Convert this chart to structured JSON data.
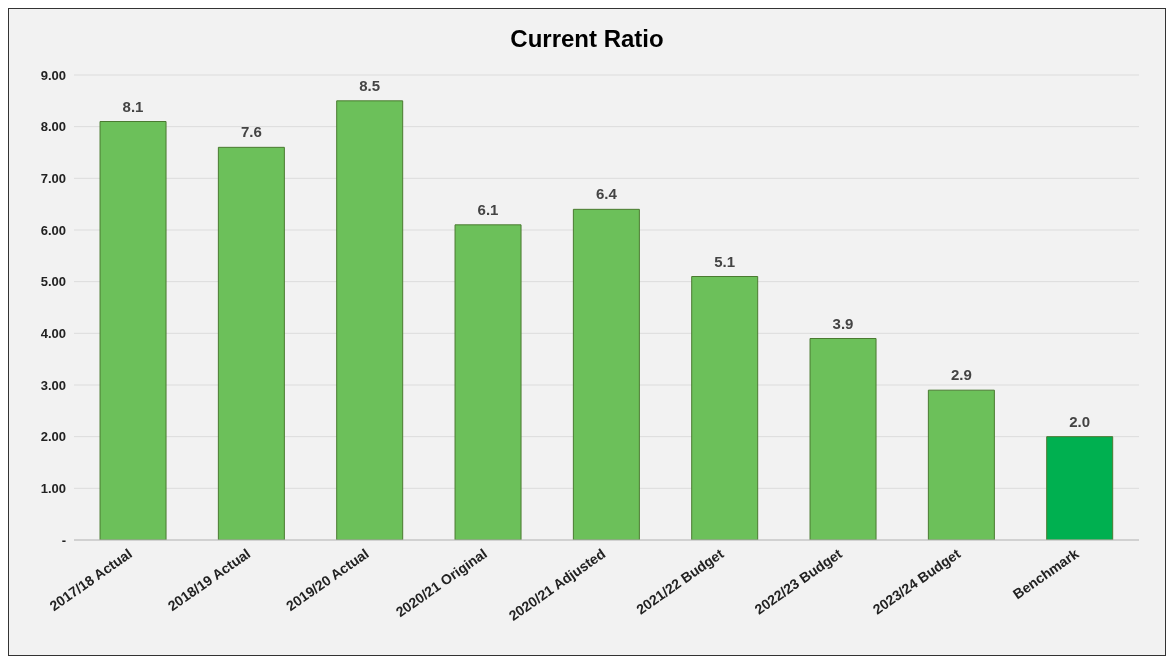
{
  "chart_data": {
    "type": "bar",
    "title": "Current Ratio",
    "categories": [
      "2017/18 Actual",
      "2018/19 Actual",
      "2019/20 Actual",
      "2020/21 Original",
      "2020/21 Adjusted",
      "2021/22 Budget",
      "2022/23 Budget",
      "2023/24 Budget",
      "Benchmark"
    ],
    "values": [
      8.1,
      7.6,
      8.5,
      6.1,
      6.4,
      5.1,
      3.9,
      2.9,
      2.0
    ],
    "value_labels": [
      "8.1",
      "7.6",
      "8.5",
      "6.1",
      "6.4",
      "5.1",
      "3.9",
      "2.9",
      "2.0"
    ],
    "colors": [
      "#6cc05a",
      "#6cc05a",
      "#6cc05a",
      "#6cc05a",
      "#6cc05a",
      "#6cc05a",
      "#6cc05a",
      "#6cc05a",
      "#00b050"
    ],
    "ylim": [
      0,
      9
    ],
    "yticks": [
      {
        "value": 0,
        "label": "-"
      },
      {
        "value": 1,
        "label": "1.00"
      },
      {
        "value": 2,
        "label": "2.00"
      },
      {
        "value": 3,
        "label": "3.00"
      },
      {
        "value": 4,
        "label": "4.00"
      },
      {
        "value": 5,
        "label": "5.00"
      },
      {
        "value": 6,
        "label": "6.00"
      },
      {
        "value": 7,
        "label": "7.00"
      },
      {
        "value": 8,
        "label": "8.00"
      },
      {
        "value": 9,
        "label": "9.00"
      }
    ],
    "grid": "y"
  }
}
